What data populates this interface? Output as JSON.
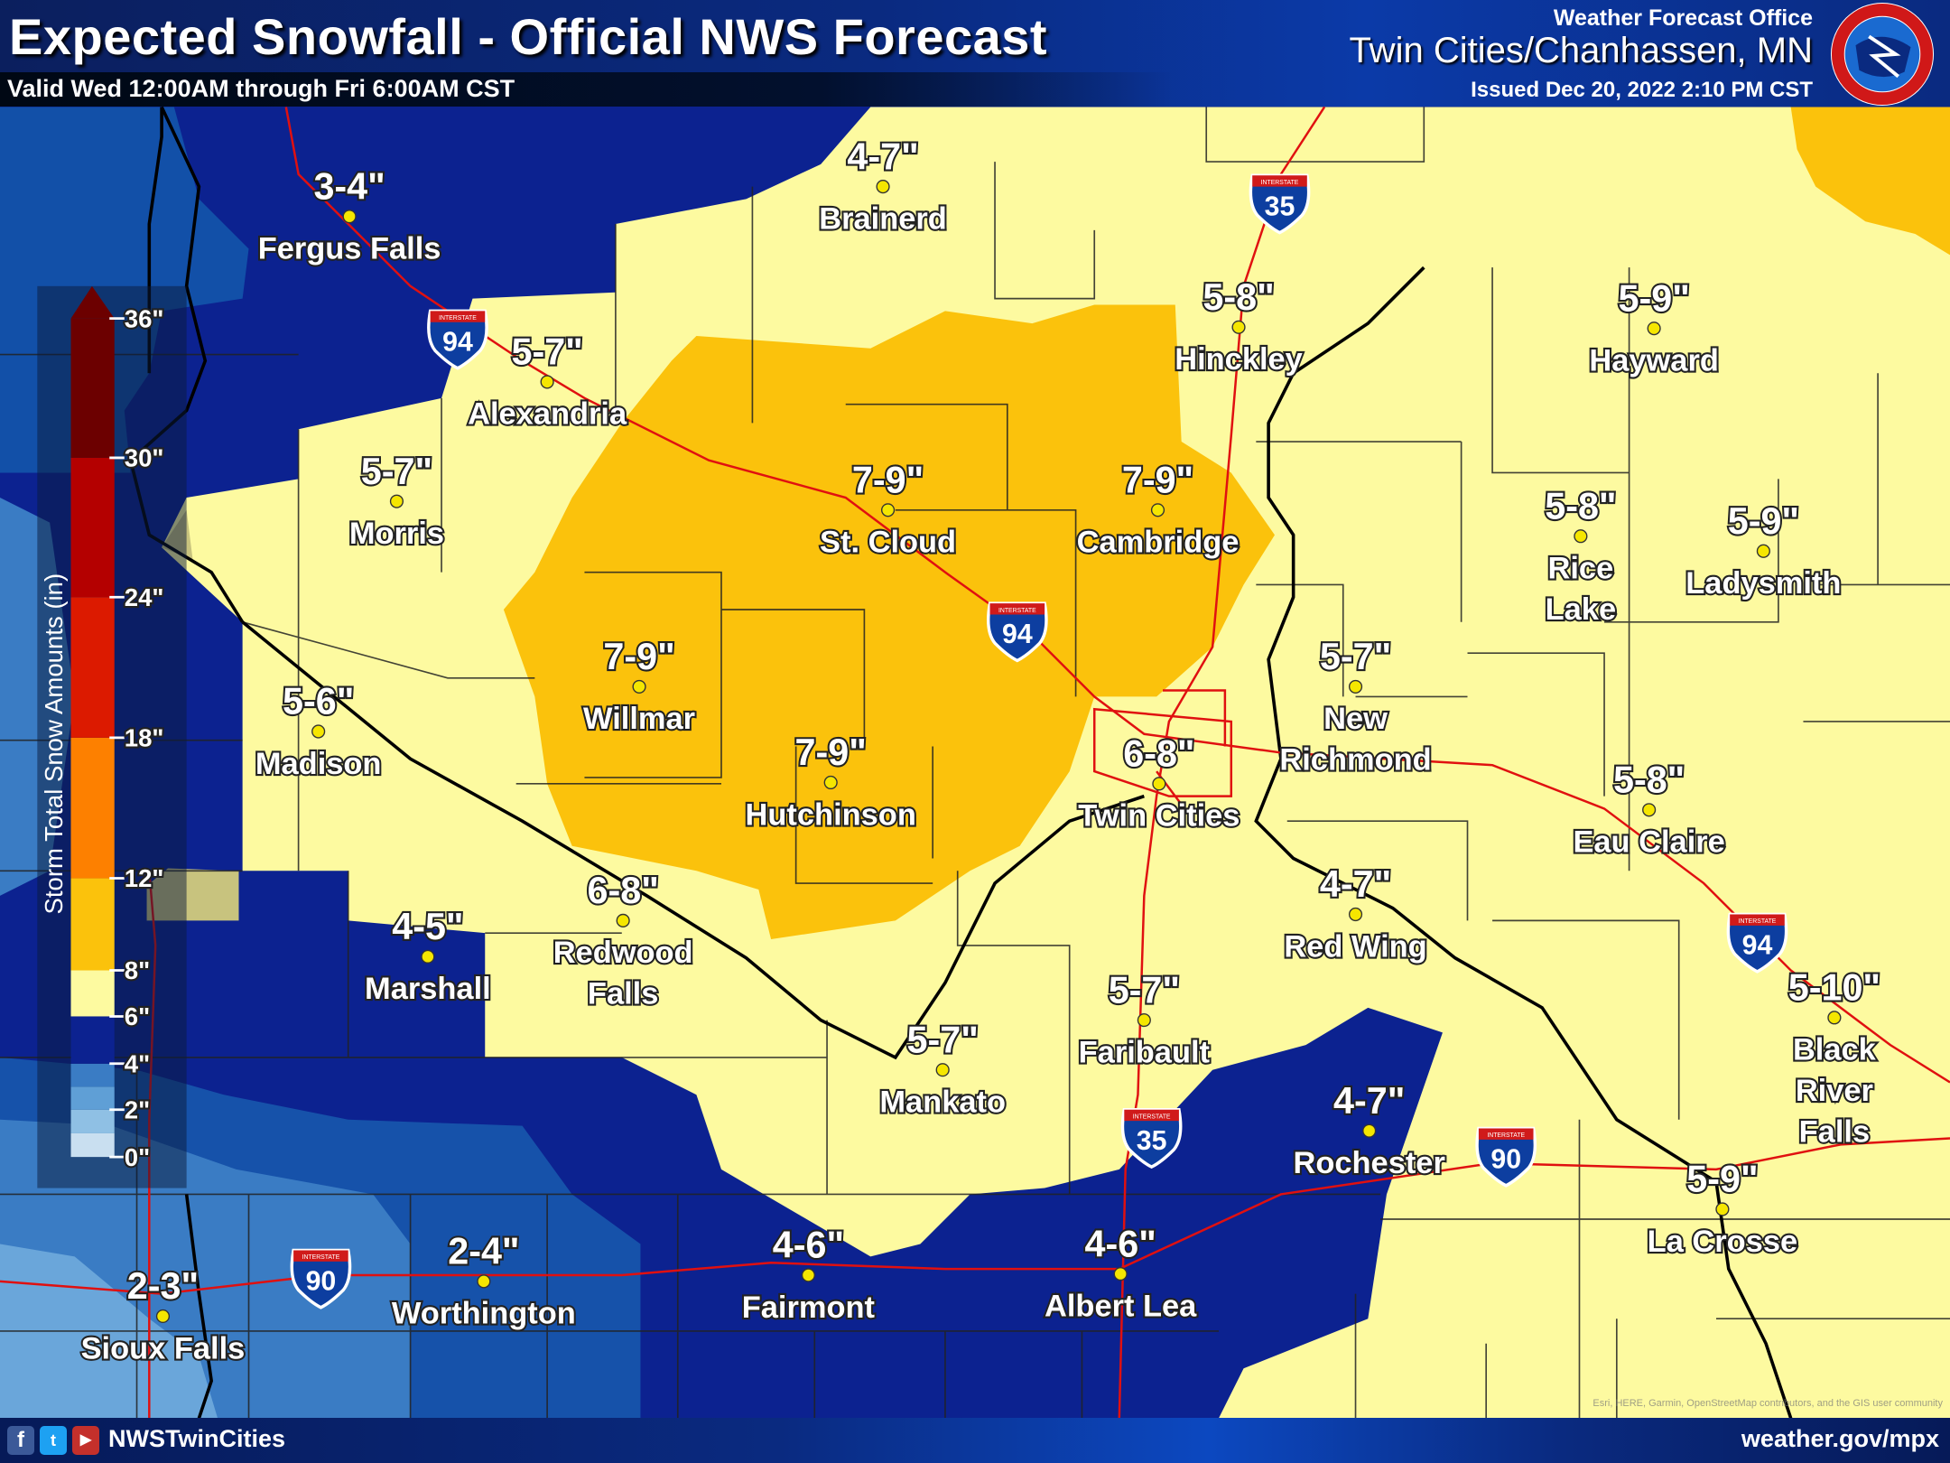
{
  "header": {
    "title": "Expected Snowfall - Official NWS Forecast",
    "valid": "Valid Wed 12:00AM through Fri 6:00AM CST",
    "office_label": "Weather Forecast Office",
    "office_name": "Twin Cities/Chanhassen, MN",
    "issued": "Issued Dec 20, 2022 2:10 PM CST",
    "logo_text": "NATIONAL WEATHER SERVICE"
  },
  "legend": {
    "title": "Storm Total Snow Amounts (in)",
    "ticks": [
      "36\"",
      "30\"",
      "24\"",
      "18\"",
      "12\"",
      "8\"",
      "6\"",
      "4\"",
      "2\"",
      "0\""
    ],
    "bins": [
      {
        "range": "0-1",
        "color": "#c9dff0"
      },
      {
        "range": "1-2",
        "color": "#8fc0e4"
      },
      {
        "range": "2-3",
        "color": "#5f9fd6"
      },
      {
        "range": "3-4",
        "color": "#3a7cc4"
      },
      {
        "range": "4-6",
        "color": "#0c2290"
      },
      {
        "range": "6-8",
        "color": "#fdfaa0"
      },
      {
        "range": "8-12",
        "color": "#fbc20c"
      },
      {
        "range": "12-18",
        "color": "#fd8000"
      },
      {
        "range": "18-24",
        "color": "#dc1a00"
      },
      {
        "range": "24-30",
        "color": "#b40000"
      },
      {
        "range": "30-36+",
        "color": "#6c0000"
      }
    ]
  },
  "locations": [
    {
      "name": "Fergus Falls",
      "amount": "3-4\""
    },
    {
      "name": "Brainerd",
      "amount": "4-7\""
    },
    {
      "name": "Alexandria",
      "amount": "5-7\""
    },
    {
      "name": "Hinckley",
      "amount": "5-8\""
    },
    {
      "name": "Hayward",
      "amount": "5-9\""
    },
    {
      "name": "Morris",
      "amount": "5-7\""
    },
    {
      "name": "St. Cloud",
      "amount": "7-9\""
    },
    {
      "name": "Cambridge",
      "amount": "7-9\""
    },
    {
      "name": "Rice Lake",
      "amount": "5-8\""
    },
    {
      "name": "Ladysmith",
      "amount": "5-9\""
    },
    {
      "name": "Willmar",
      "amount": "7-9\""
    },
    {
      "name": "Madison",
      "amount": "5-6\""
    },
    {
      "name": "New Richmond",
      "amount": "5-7\""
    },
    {
      "name": "Hutchinson",
      "amount": "7-9\""
    },
    {
      "name": "Twin Cities",
      "amount": "6-8\""
    },
    {
      "name": "Eau Claire",
      "amount": "5-8\""
    },
    {
      "name": "Redwood Falls",
      "amount": "6-8\""
    },
    {
      "name": "Marshall",
      "amount": "4-5\""
    },
    {
      "name": "Red Wing",
      "amount": "4-7\""
    },
    {
      "name": "Faribault",
      "amount": "5-7\""
    },
    {
      "name": "Black River Falls",
      "amount": "5-10\""
    },
    {
      "name": "Mankato",
      "amount": "5-7\""
    },
    {
      "name": "Rochester",
      "amount": "4-7\""
    },
    {
      "name": "La Crosse",
      "amount": "5-9\""
    },
    {
      "name": "Worthington",
      "amount": "2-4\""
    },
    {
      "name": "Fairmont",
      "amount": "4-6\""
    },
    {
      "name": "Albert Lea",
      "amount": "4-6\""
    },
    {
      "name": "Sioux Falls",
      "amount": "2-3\""
    }
  ],
  "interstates": [
    {
      "number": "94",
      "label": "INTERSTATE"
    },
    {
      "number": "35",
      "label": "INTERSTATE"
    },
    {
      "number": "94",
      "label": "INTERSTATE"
    },
    {
      "number": "94",
      "label": "INTERSTATE"
    },
    {
      "number": "35",
      "label": "INTERSTATE"
    },
    {
      "number": "90",
      "label": "INTERSTATE"
    },
    {
      "number": "90",
      "label": "INTERSTATE"
    }
  ],
  "footer": {
    "social_icons": [
      "facebook-icon",
      "twitter-icon",
      "youtube-icon"
    ],
    "handle": "NWSTwinCities",
    "website": "weather.gov/mpx",
    "attribution": "Esri, HERE, Garmin, OpenStreetMap contributors, and the GIS user community"
  },
  "colors": {
    "highway": "#e01010",
    "state_border": "#000000",
    "city_dot": "#f5e600"
  }
}
